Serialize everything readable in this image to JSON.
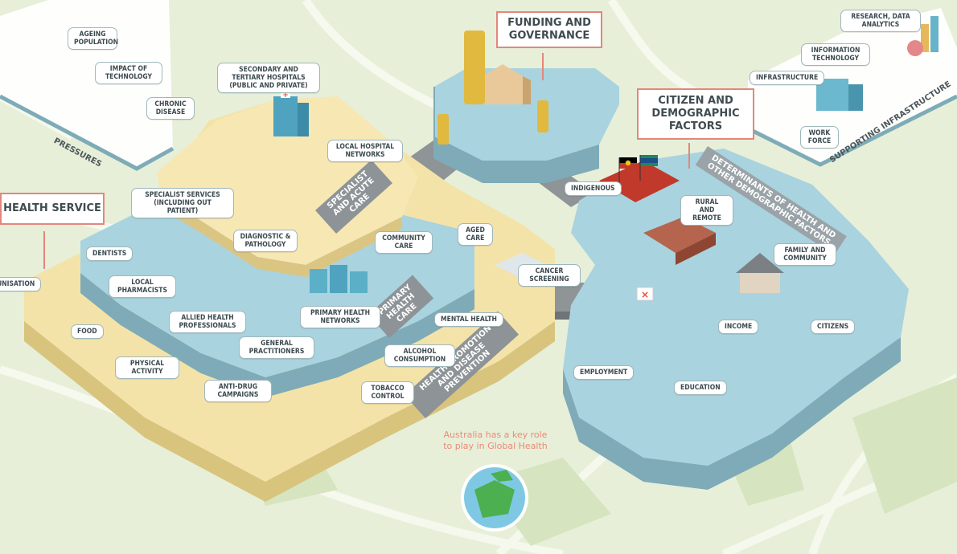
{
  "headers": {
    "funding": "FUNDING AND GOVERNANCE",
    "citizen": "CITIZEN AND DEMOGRAPHIC FACTORS",
    "health_service": "HEALTH SERVICE"
  },
  "band_labels": {
    "pressures": "PRESSURES",
    "supporting_infrastructure": "SUPPORTING INFRASTRUCTURE",
    "specialist_acute": "SPECIALIST AND ACUTE CARE",
    "primary_health": "PRIMARY HEALTH CARE",
    "health_promotion": "HEALTH PROMOTION AND DISEASE PREVENTION",
    "determinants": "DETERMINANTS OF HEALTH AND OTHER DEMOGRAPHIC FACTORS"
  },
  "labels": {
    "ageing": "AGEING POPULATION",
    "impact_tech": "IMPACT OF TECHNOLOGY",
    "chronic": "CHRONIC DISEASE",
    "secondary": "SECONDARY AND TERTIARY HOSPITALS (PUBLIC AND PRIVATE)",
    "local_hospital": "LOCAL HOSPITAL NETWORKS",
    "specialist_services": "SPECIALIST SERVICES (INCLUDING OUT PATIENT)",
    "diagnostic": "DIAGNOSTIC & PATHOLOGY",
    "dentists": "DENTISTS",
    "immunisation": "IMMUNISATION",
    "local_pharmacists": "LOCAL PHARMACISTS",
    "allied_health": "ALLIED HEALTH PROFESSIONALS",
    "general_practitioners": "GENERAL PRACTITIONERS",
    "primary_networks": "PRIMARY HEALTH NETWORKS",
    "community_care": "COMMUNITY CARE",
    "aged_care": "AGED CARE",
    "cancer_screening": "CANCER SCREENING",
    "mental_health": "MENTAL HEALTH",
    "alcohol": "ALCOHOL CONSUMPTION",
    "tobacco": "TOBACCO CONTROL",
    "anti_drug": "ANTI-DRUG CAMPAIGNS",
    "food": "FOOD",
    "physical": "PHYSICAL ACTIVITY",
    "indigenous": "INDIGENOUS",
    "rural": "RURAL AND REMOTE",
    "family": "FAMILY AND COMMUNITY",
    "citizens": "CITIZENS",
    "income": "INCOME",
    "employment": "EMPLOYMENT",
    "education": "EDUCATION",
    "research": "RESEARCH, DATA ANALYTICS",
    "info_tech": "INFORMATION TECHNOLOGY",
    "infrastructure": "INFRASTRUCTURE",
    "workforce": "WORK FORCE"
  },
  "global_note": "Australia has a key role to play in Global Health",
  "colors": {
    "background": "#e7efd9",
    "platform_blue": "#a9d3de",
    "platform_cream": "#f4e3a8",
    "header_border": "#e3877c",
    "note_text": "#ec8a76"
  }
}
